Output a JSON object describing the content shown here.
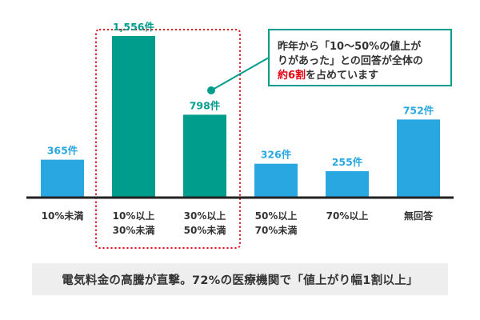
{
  "chart_data": {
    "type": "bar",
    "categories": [
      [
        "10%未満"
      ],
      [
        "10%以上",
        "30%未満"
      ],
      [
        "30%以上",
        "50%未満"
      ],
      [
        "50%以上",
        "70%未満"
      ],
      [
        "70%以上"
      ],
      [
        "無回答"
      ]
    ],
    "values": [
      365,
      1556,
      798,
      326,
      255,
      752
    ],
    "value_labels": [
      "365件",
      "1,556件",
      "798件",
      "326件",
      "255件",
      "752件"
    ],
    "ylim": [
      0,
      1556
    ],
    "title": "",
    "xlabel": "",
    "ylabel": "",
    "highlighted_categories": [
      1,
      2
    ]
  },
  "callout": {
    "line1": "昨年から「10～50%の値上が",
    "line2": "りがあった」との回答が全体の",
    "line3_highlight": "約6割",
    "line3_rest": "を占めています"
  },
  "footer": {
    "caption": "電気料金の高騰が直撃。72%の医療機関で「値上がり幅1割以上」"
  },
  "colors": {
    "bar_default": "#29a7e1",
    "bar_highlight": "#009c8c",
    "label_default": "#29a7e1",
    "label_highlight": "#009c8c",
    "highlight_frame": "#e60012",
    "callout_border": "#009c8c",
    "callout_accent": "#e60012",
    "axis": "#222222",
    "text": "#333333",
    "footer_bg": "#eeeeee"
  }
}
